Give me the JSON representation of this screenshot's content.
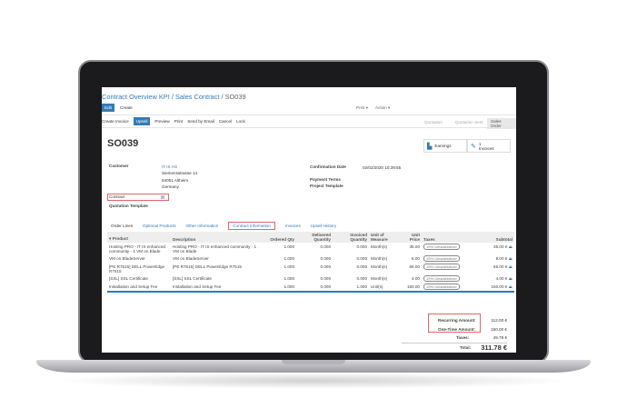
{
  "breadcrumb": {
    "items": [
      "Contract Overview KPI",
      "Sales Contract"
    ],
    "current": "SO039"
  },
  "toolbar": {
    "edit": "Edit",
    "create": "Create",
    "print": "Print",
    "action": "Action"
  },
  "actions": [
    "Create Invoice",
    "Upsell",
    "Preview",
    "Print",
    "Send by Email",
    "Cancel",
    "Lock"
  ],
  "stages": [
    "Quotation",
    "Quotation Sent",
    "Sales Order"
  ],
  "record": {
    "name": "SO039",
    "earnings": "Earnings",
    "invoices_count": "1",
    "invoices_label": "Invoices",
    "customer_label": "Customer",
    "customer": [
      "IT IS AG",
      "Siemensstrasse 14",
      "84051 Altheim",
      "Germany"
    ],
    "confirmation_label": "Confirmation Date",
    "confirmation": "02/02/2020 10:39:55",
    "payment_terms_label": "Payment Terms",
    "project_template_label": "Project Template",
    "contract_label": "Contract",
    "quotation_template_label": "Quotation Template"
  },
  "tabs": [
    "Order Lines",
    "Optional Products",
    "Other Information",
    "Contract Information",
    "Invoices",
    "Upsell History"
  ],
  "table": {
    "headers": [
      "Product",
      "Description",
      "Ordered Qty",
      "Delivered Quantity",
      "Invoiced Quantity",
      "Unit of Measure",
      "Unit Price",
      "Taxes",
      "Subtotal"
    ],
    "rows": [
      [
        "Hosting PRO - IT IS enhanced community - 1 VM on Blade",
        "Hosting PRO - IT IS enhanced community - 1 VM on Blade",
        "1.000",
        "0.000",
        "0.000",
        "Month(s)",
        "35.00",
        "19% Umsatzsteuer",
        "35.00 €"
      ],
      [
        "VM on BladeServer",
        "VM on BladeServer",
        "1.000",
        "0.000",
        "0.000",
        "Month(s)",
        "8.00",
        "19% Umsatzsteuer",
        "8.00 €"
      ],
      [
        "[PE R7515] DELL PowerEdge R7515",
        "[PE R7515] DELL PowerEdge R7515",
        "1.000",
        "0.000",
        "0.000",
        "Month(s)",
        "65.00",
        "19% Umsatzsteuer",
        "65.00 €"
      ],
      [
        "[SSL] SSL Certificate",
        "[SSL] SSL Certificate",
        "1.000",
        "0.000",
        "0.000",
        "Month(s)",
        "4.00",
        "19% Umsatzsteuer",
        "4.00 €"
      ],
      [
        "Installation and Setup Fee",
        "Installation and Setup Fee",
        "1.000",
        "0.000",
        "1.000",
        "Unit(s)",
        "150.00",
        "19% Umsatzsteuer",
        "150.00 €"
      ]
    ]
  },
  "totals": {
    "recurring_label": "Recurring Amount:",
    "recurring": "112.00 €",
    "onetime_label": "One-Time Amount:",
    "onetime": "150.00 €",
    "taxes_label": "Taxes:",
    "taxes": "49.78 €",
    "total_label": "Total:",
    "total": "311.78 €"
  },
  "colors": {
    "accent": "#337ab7",
    "highlight": "#e06666"
  }
}
